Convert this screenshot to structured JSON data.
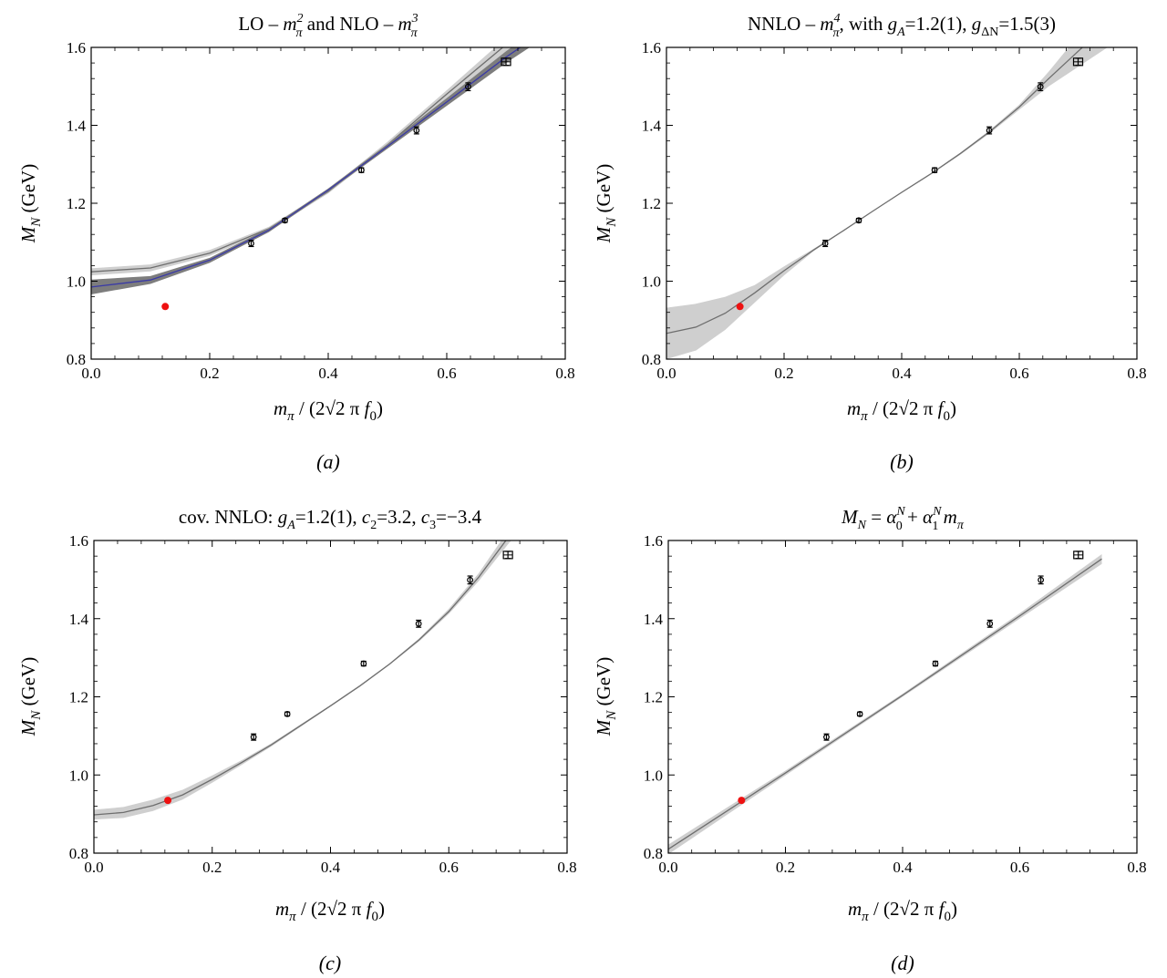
{
  "colors": {
    "band_dark": "#7d7d7d",
    "band_light": "#cfcfcf",
    "curve_gray": "#6e6e6e",
    "curve_blue": "#3a3aa6",
    "data_point": "#000000",
    "physical_point": "#ee1111"
  },
  "chart_data": [
    {
      "type": "line",
      "caption": "(a)",
      "title": {
        "a": "LO – ",
        "b": "m",
        "b_sub": "π",
        "b_sup": "2",
        "c": " and  NLO – ",
        "d": "m",
        "d_sub": "π",
        "d_sup": "3"
      },
      "xlabel": {
        "m": "m",
        "m_sub": "π",
        "rest": " / (2√2 π ",
        "f": "f",
        "f_sub": "0",
        "close": ")"
      },
      "ylabel": {
        "m": "M",
        "m_sub": "N",
        "rest": " (GeV)"
      },
      "xlim": [
        0.0,
        0.8
      ],
      "ylim": [
        0.8,
        1.6
      ],
      "xticks": [
        "0.0",
        "0.2",
        "0.4",
        "0.6",
        "0.8"
      ],
      "yticks": [
        "0.8",
        "1.0",
        "1.2",
        "1.4",
        "1.6"
      ],
      "data": [
        {
          "x": 0.27,
          "y": 1.097,
          "err": 0.008
        },
        {
          "x": 0.327,
          "y": 1.156,
          "err": 0.005
        },
        {
          "x": 0.456,
          "y": 1.285,
          "err": 0.006
        },
        {
          "x": 0.549,
          "y": 1.387,
          "err": 0.009
        },
        {
          "x": 0.636,
          "y": 1.499,
          "err": 0.01
        },
        {
          "x": 0.7,
          "y": 1.563,
          "err": 0.009
        }
      ],
      "physical_point": {
        "x": 0.125,
        "y": 0.935
      },
      "bands": [
        {
          "name": "",
          "style": "light",
          "x": [
            0.0,
            0.1,
            0.2,
            0.3,
            0.4,
            0.5,
            0.6,
            0.7,
            0.75
          ],
          "lower": [
            1.015,
            1.025,
            1.065,
            1.13,
            1.225,
            1.345,
            1.47,
            1.59,
            1.64
          ],
          "upper": [
            1.033,
            1.043,
            1.08,
            1.14,
            1.235,
            1.358,
            1.49,
            1.625,
            1.69
          ],
          "center": [
            1.024,
            1.034,
            1.072,
            1.135,
            1.23,
            1.35,
            1.48,
            1.607,
            1.665
          ]
        },
        {
          "name": "",
          "style": "dark",
          "x": [
            0.0,
            0.1,
            0.2,
            0.3,
            0.4,
            0.5,
            0.6,
            0.7,
            0.75
          ],
          "lower": [
            0.966,
            0.993,
            1.047,
            1.126,
            1.23,
            1.34,
            1.45,
            1.56,
            1.61
          ],
          "upper": [
            1.004,
            1.013,
            1.06,
            1.136,
            1.238,
            1.352,
            1.47,
            1.59,
            1.645
          ],
          "center": [
            0.985,
            1.003,
            1.054,
            1.131,
            1.234,
            1.346,
            1.46,
            1.575,
            1.627
          ]
        }
      ]
    },
    {
      "type": "line",
      "caption": "(b)",
      "title": {
        "a": "NNLO – ",
        "b": "m",
        "b_sub": "π",
        "b_sup": "4",
        "c": ", with ",
        "d": "g",
        "d_sub": "A",
        "e": "=1.2(1), ",
        "f": "g",
        "f_sub": "ΔN",
        "g": "=1.5(3)"
      },
      "xlabel": {
        "m": "m",
        "m_sub": "π",
        "rest": " / (2√2 π ",
        "f": "f",
        "f_sub": "0",
        "close": ")"
      },
      "ylabel": {
        "m": "M",
        "m_sub": "N",
        "rest": " (GeV)"
      },
      "xlim": [
        0.0,
        0.8
      ],
      "ylim": [
        0.8,
        1.6
      ],
      "xticks": [
        "0.0",
        "0.2",
        "0.4",
        "0.6",
        "0.8"
      ],
      "yticks": [
        "0.8",
        "1.0",
        "1.2",
        "1.4",
        "1.6"
      ],
      "data": [
        {
          "x": 0.27,
          "y": 1.097,
          "err": 0.008
        },
        {
          "x": 0.327,
          "y": 1.156,
          "err": 0.005
        },
        {
          "x": 0.456,
          "y": 1.285,
          "err": 0.006
        },
        {
          "x": 0.549,
          "y": 1.387,
          "err": 0.009
        },
        {
          "x": 0.636,
          "y": 1.499,
          "err": 0.01
        },
        {
          "x": 0.7,
          "y": 1.563,
          "err": 0.009
        }
      ],
      "physical_point": {
        "x": 0.125,
        "y": 0.935
      },
      "bands": [
        {
          "name": "",
          "style": "light",
          "x": [
            0.0,
            0.05,
            0.1,
            0.15,
            0.2,
            0.25,
            0.3,
            0.35,
            0.4,
            0.45,
            0.5,
            0.55,
            0.6,
            0.65,
            0.7,
            0.75
          ],
          "lower": [
            0.8,
            0.822,
            0.875,
            0.945,
            1.015,
            1.077,
            1.128,
            1.178,
            1.226,
            1.274,
            1.325,
            1.38,
            1.44,
            1.5,
            1.55,
            1.6
          ],
          "upper": [
            0.932,
            0.942,
            0.96,
            0.99,
            1.038,
            1.083,
            1.13,
            1.18,
            1.229,
            1.278,
            1.33,
            1.388,
            1.453,
            1.538,
            1.63,
            1.72
          ],
          "center": [
            0.866,
            0.882,
            0.918,
            0.97,
            1.027,
            1.08,
            1.129,
            1.179,
            1.228,
            1.276,
            1.328,
            1.384,
            1.447,
            1.52,
            1.59,
            1.66
          ]
        }
      ]
    },
    {
      "type": "line",
      "caption": "(c)",
      "title": {
        "a": "cov. NNLO:  ",
        "b": "g",
        "b_sub": "A",
        "c": "=1.2(1), ",
        "d": "c",
        "d_sub": "2",
        "e": "=3.2, ",
        "f": "c",
        "f_sub": "3",
        "g": "=−3.4"
      },
      "xlabel": {
        "m": "m",
        "m_sub": "π",
        "rest": " / (2√2 π ",
        "f": "f",
        "f_sub": "0",
        "close": ")"
      },
      "ylabel": {
        "m": "M",
        "m_sub": "N",
        "rest": " (GeV)"
      },
      "xlim": [
        0.0,
        0.8
      ],
      "ylim": [
        0.8,
        1.6
      ],
      "xticks": [
        "0.0",
        "0.2",
        "0.4",
        "0.6",
        "0.8"
      ],
      "yticks": [
        "0.8",
        "1.0",
        "1.2",
        "1.4",
        "1.6"
      ],
      "data": [
        {
          "x": 0.27,
          "y": 1.097,
          "err": 0.008
        },
        {
          "x": 0.327,
          "y": 1.156,
          "err": 0.005
        },
        {
          "x": 0.456,
          "y": 1.285,
          "err": 0.006
        },
        {
          "x": 0.549,
          "y": 1.387,
          "err": 0.009
        },
        {
          "x": 0.636,
          "y": 1.499,
          "err": 0.01
        },
        {
          "x": 0.7,
          "y": 1.563,
          "err": 0.009
        }
      ],
      "physical_point": {
        "x": 0.125,
        "y": 0.935
      },
      "bands": [
        {
          "name": "",
          "style": "light",
          "x": [
            0.0,
            0.05,
            0.1,
            0.15,
            0.2,
            0.25,
            0.3,
            0.35,
            0.4,
            0.45,
            0.5,
            0.55,
            0.6,
            0.65,
            0.7,
            0.72
          ],
          "lower": [
            0.886,
            0.89,
            0.908,
            0.937,
            0.98,
            1.026,
            1.073,
            1.124,
            1.175,
            1.226,
            1.282,
            1.342,
            1.412,
            1.495,
            1.59,
            1.625
          ],
          "upper": [
            0.911,
            0.918,
            0.937,
            0.962,
            0.999,
            1.038,
            1.081,
            1.13,
            1.179,
            1.231,
            1.286,
            1.35,
            1.425,
            1.515,
            1.625,
            1.66
          ],
          "center": [
            0.898,
            0.904,
            0.922,
            0.949,
            0.989,
            1.032,
            1.077,
            1.127,
            1.177,
            1.228,
            1.284,
            1.346,
            1.418,
            1.505,
            1.607,
            1.642
          ]
        }
      ]
    },
    {
      "type": "line",
      "caption": "(d)",
      "title": {
        "a": "M",
        "a_sub": "N",
        "b": " = ",
        "c": "α",
        "c_sub": "0",
        "c_sup": "N",
        "d": " + ",
        "e": "α",
        "e_sub": "1",
        "e_sup": "N",
        "f": " m",
        "f_sub": "π"
      },
      "xlabel": {
        "m": "m",
        "m_sub": "π",
        "rest": " / (2√2 π ",
        "f": "f",
        "f_sub": "0",
        "close": ")"
      },
      "ylabel": {
        "m": "M",
        "m_sub": "N",
        "rest": " (GeV)"
      },
      "xlim": [
        0.0,
        0.8
      ],
      "ylim": [
        0.8,
        1.6
      ],
      "xticks": [
        "0.0",
        "0.2",
        "0.4",
        "0.6",
        "0.8"
      ],
      "yticks": [
        "0.8",
        "1.0",
        "1.2",
        "1.4",
        "1.6"
      ],
      "data": [
        {
          "x": 0.27,
          "y": 1.097,
          "err": 0.008
        },
        {
          "x": 0.327,
          "y": 1.156,
          "err": 0.005
        },
        {
          "x": 0.456,
          "y": 1.285,
          "err": 0.006
        },
        {
          "x": 0.549,
          "y": 1.387,
          "err": 0.009
        },
        {
          "x": 0.636,
          "y": 1.499,
          "err": 0.01
        },
        {
          "x": 0.7,
          "y": 1.563,
          "err": 0.009
        }
      ],
      "physical_point": {
        "x": 0.125,
        "y": 0.935
      },
      "bands": [
        {
          "name": "",
          "style": "light",
          "x": [
            0.0,
            0.2,
            0.4,
            0.6,
            0.74
          ],
          "lower": [
            0.797,
            0.999,
            1.2,
            1.4,
            1.54
          ],
          "upper": [
            0.822,
            1.011,
            1.208,
            1.414,
            1.565
          ],
          "center": [
            0.81,
            1.005,
            1.204,
            1.407,
            1.553
          ]
        }
      ]
    }
  ]
}
